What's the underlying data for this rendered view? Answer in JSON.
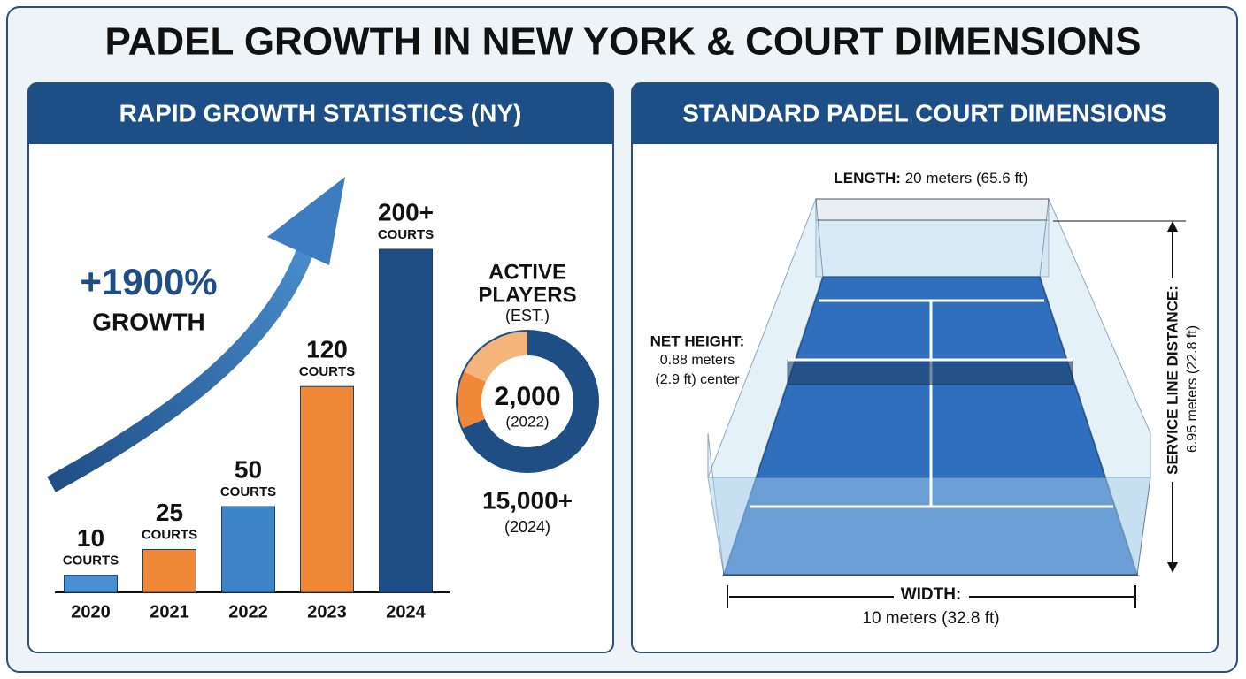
{
  "title": "PADEL GROWTH IN NEW YORK & COURT DIMENSIONS",
  "chart_data": {
    "type": "bar",
    "title": "RAPID GROWTH STATISTICS (NY)",
    "categories": [
      "2020",
      "2021",
      "2022",
      "2023",
      "2024"
    ],
    "values": [
      10,
      25,
      50,
      120,
      200
    ],
    "value_labels": [
      "10",
      "25",
      "50",
      "120",
      "200+"
    ],
    "unit_label": "COURTS",
    "colors": [
      "#4a8fd0",
      "#f0883a",
      "#3d85c6",
      "#f0883a",
      "#1f4e85"
    ],
    "growth": {
      "value": "+1900%",
      "label": "GROWTH"
    }
  },
  "players": {
    "title": "ACTIVE",
    "title2": "PLAYERS",
    "subtitle": "(EST.)",
    "stats": [
      {
        "value": "2,000",
        "year": "(2022)"
      },
      {
        "value": "15,000+",
        "year": "(2024)"
      }
    ]
  },
  "court": {
    "title": "STANDARD PADEL COURT DIMENSIONS",
    "length": {
      "label": "LENGTH:",
      "text": "20 meters (65.6 ft)"
    },
    "net": {
      "label": "NET HEIGHT:",
      "line1": "0.88 meters",
      "line2": "(2.9 ft) center"
    },
    "service": {
      "label": "SERVICE LINE DISTANCE:",
      "text": "6.95 meters (22.8 ft)"
    },
    "width": {
      "label": "WIDTH:",
      "text": "10 meters (32.8 ft)"
    }
  }
}
